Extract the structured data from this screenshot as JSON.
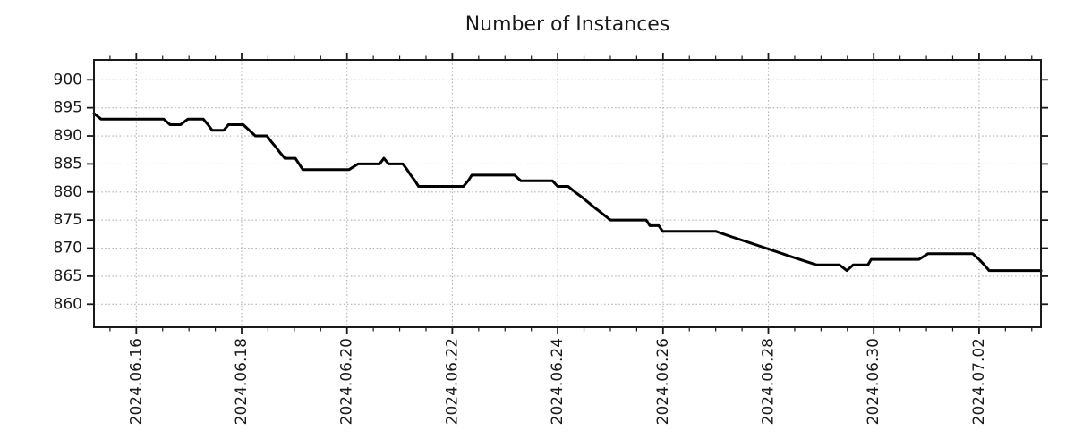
{
  "chart_data": {
    "type": "line",
    "title": "Number of Instances",
    "xlabel": "",
    "ylabel": "",
    "legend": "none",
    "grid": {
      "visible": true,
      "style": "dotted",
      "color": "#b0b0b0",
      "which": "major"
    },
    "x_unit": "days since 2024-06-15 00:00",
    "xlim": [
      0.196,
      18.174
    ],
    "ylim": [
      855.9,
      903.55
    ],
    "y_ticks": [
      860,
      865,
      870,
      875,
      880,
      885,
      890,
      895,
      900
    ],
    "x_major_ticks": [
      {
        "d": 1,
        "label": "2024.06.16"
      },
      {
        "d": 3,
        "label": "2024.06.18"
      },
      {
        "d": 5,
        "label": "2024.06.20"
      },
      {
        "d": 7,
        "label": "2024.06.22"
      },
      {
        "d": 9,
        "label": "2024.06.24"
      },
      {
        "d": 11,
        "label": "2024.06.26"
      },
      {
        "d": 13,
        "label": "2024.06.28"
      },
      {
        "d": 15,
        "label": "2024.06.30"
      },
      {
        "d": 17,
        "label": "2024.07.02"
      }
    ],
    "x_minor_step_days": 0.5,
    "line": {
      "color": "#000000",
      "width": 3
    },
    "spine_color": "#1a1a1a",
    "points": [
      [
        0.196,
        894
      ],
      [
        0.33,
        893
      ],
      [
        1.52,
        893
      ],
      [
        1.64,
        892
      ],
      [
        1.84,
        892
      ],
      [
        1.98,
        893
      ],
      [
        2.27,
        893
      ],
      [
        2.36,
        892
      ],
      [
        2.44,
        891
      ],
      [
        2.66,
        891
      ],
      [
        2.75,
        892
      ],
      [
        3.03,
        892
      ],
      [
        3.26,
        890
      ],
      [
        3.48,
        890
      ],
      [
        3.56,
        889
      ],
      [
        3.65,
        888
      ],
      [
        3.73,
        887
      ],
      [
        3.82,
        886
      ],
      [
        4.02,
        886
      ],
      [
        4.09,
        885
      ],
      [
        4.16,
        884
      ],
      [
        5.04,
        884
      ],
      [
        5.21,
        885
      ],
      [
        5.62,
        885
      ],
      [
        5.7,
        886
      ],
      [
        5.79,
        885
      ],
      [
        6.06,
        885
      ],
      [
        6.14,
        884
      ],
      [
        6.21,
        883
      ],
      [
        6.29,
        882
      ],
      [
        6.36,
        881
      ],
      [
        7.21,
        881
      ],
      [
        7.3,
        882
      ],
      [
        7.37,
        883
      ],
      [
        8.18,
        883
      ],
      [
        8.3,
        882
      ],
      [
        8.9,
        882
      ],
      [
        9.0,
        881
      ],
      [
        9.2,
        881
      ],
      [
        9.33,
        880
      ],
      [
        9.47,
        879
      ],
      [
        9.6,
        878
      ],
      [
        9.73,
        877
      ],
      [
        9.87,
        876
      ],
      [
        10.0,
        875
      ],
      [
        10.68,
        875
      ],
      [
        10.75,
        874
      ],
      [
        10.92,
        874
      ],
      [
        10.99,
        873
      ],
      [
        12.0,
        873
      ],
      [
        12.31,
        872
      ],
      [
        12.63,
        871
      ],
      [
        12.95,
        870
      ],
      [
        13.27,
        869
      ],
      [
        13.59,
        868
      ],
      [
        13.92,
        867
      ],
      [
        14.35,
        867
      ],
      [
        14.49,
        866
      ],
      [
        14.61,
        867
      ],
      [
        14.89,
        867
      ],
      [
        14.95,
        868
      ],
      [
        15.86,
        868
      ],
      [
        16.03,
        869
      ],
      [
        16.88,
        869
      ],
      [
        17.0,
        868
      ],
      [
        17.1,
        867
      ],
      [
        17.19,
        866
      ],
      [
        18.174,
        866
      ]
    ]
  }
}
